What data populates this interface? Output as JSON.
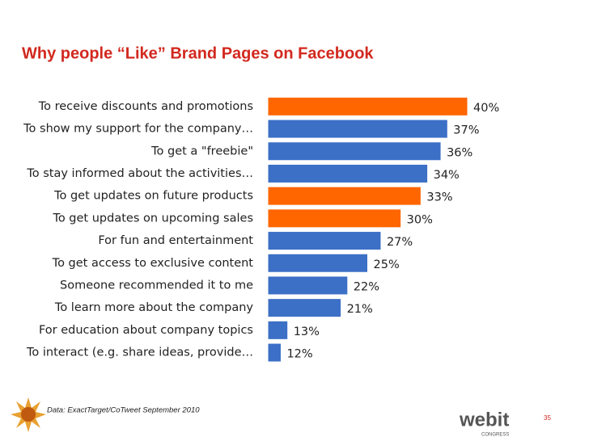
{
  "chart_data": {
    "type": "bar",
    "orientation": "horizontal",
    "title": "Why people “Like” Brand Pages on Facebook",
    "categories": [
      "To receive discounts and promotions",
      "To show my support for the company…",
      "To get a \"freebie\"",
      "To stay informed about the activities…",
      "To get updates on future products",
      "To get updates on upcoming sales",
      "For fun and entertainment",
      "To get access to exclusive content",
      "Someone recommended it to me",
      "To learn more about the company",
      "For education about company topics",
      "To interact (e.g. share ideas, provide…"
    ],
    "values": [
      40,
      37,
      36,
      34,
      33,
      30,
      27,
      25,
      22,
      21,
      13,
      12
    ],
    "value_labels": [
      "40%",
      "37%",
      "36%",
      "34%",
      "33%",
      "30%",
      "27%",
      "25%",
      "22%",
      "21%",
      "13%",
      "12%"
    ],
    "colors": [
      "#ff6600",
      "#3c6fc6",
      "#3c6fc6",
      "#3c6fc6",
      "#ff6600",
      "#ff6600",
      "#3c6fc6",
      "#3c6fc6",
      "#3c6fc6",
      "#3c6fc6",
      "#3c6fc6",
      "#3c6fc6"
    ],
    "xlim": [
      10,
      40
    ],
    "source": "Data: ExactTarget/CoTweet September 2010"
  },
  "footer": {
    "logo": "webit",
    "logo_sub": "CONGRESS",
    "page_number": "35"
  }
}
